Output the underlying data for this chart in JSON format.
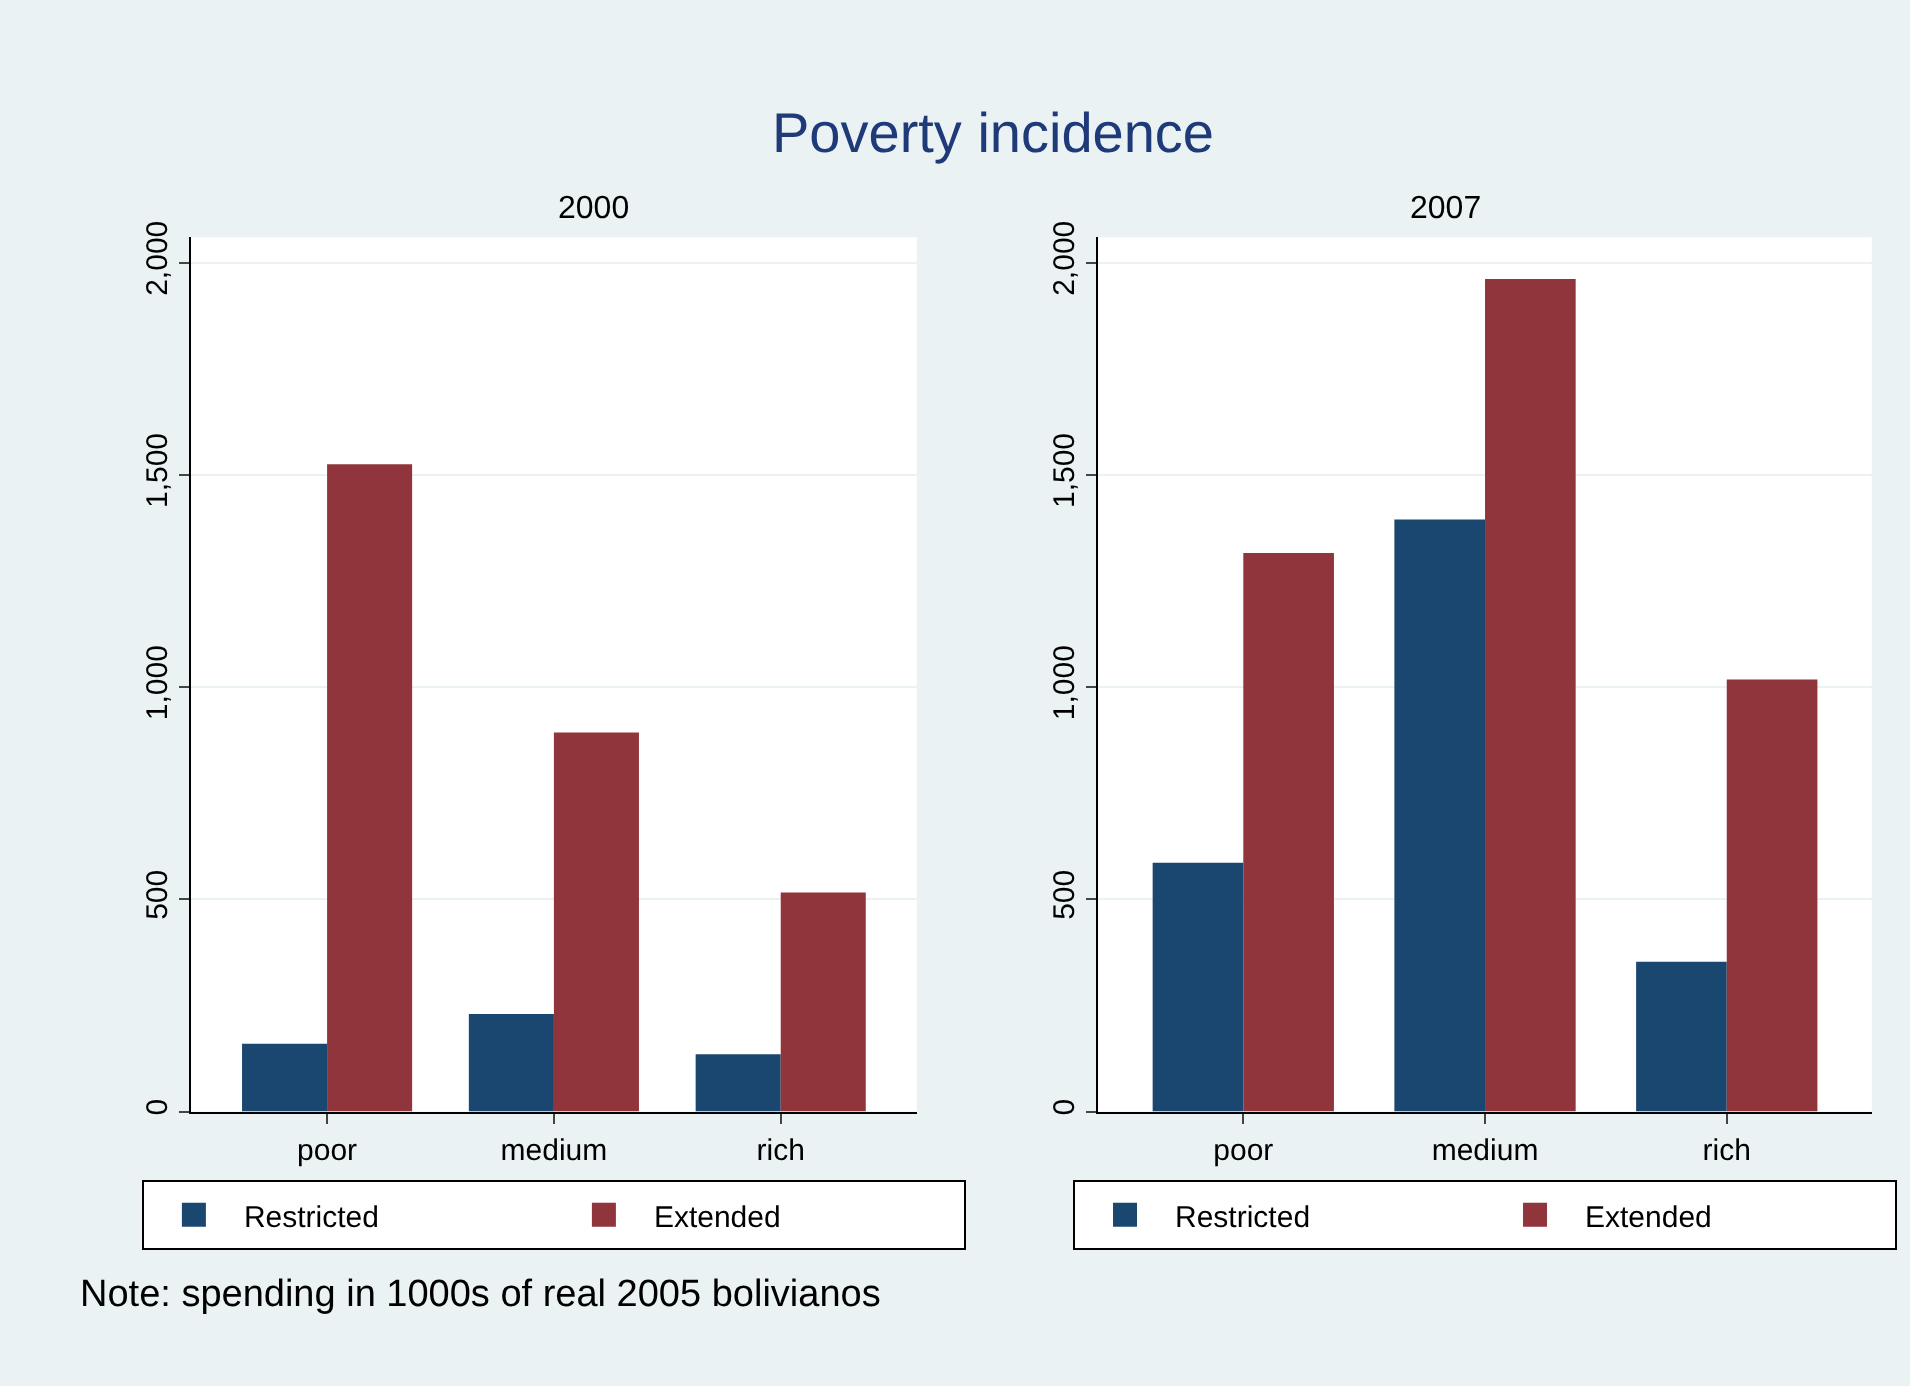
{
  "chart_data": [
    {
      "type": "bar",
      "title": "2000",
      "categories": [
        "poor",
        "medium",
        "rich"
      ],
      "series": [
        {
          "name": "Restricted",
          "color": "#1a476f",
          "values": [
            160,
            230,
            135
          ]
        },
        {
          "name": "Extended",
          "color": "#90353b",
          "values": [
            1525,
            893,
            516
          ]
        }
      ],
      "ylim": [
        0,
        2060
      ],
      "yticks": [
        0,
        500,
        {
          "value": 1000,
          "label": "1,000"
        },
        {
          "value": 1500,
          "label": "1,500"
        },
        {
          "value": 2000,
          "label": "2,000"
        }
      ],
      "grid": "y",
      "legend": "bottom",
      "annotations": [
        "Poverty incidence",
        "Note: spending in 1000s of real 2005 bolivianos"
      ]
    },
    {
      "type": "bar",
      "title": "2007",
      "categories": [
        "poor",
        "medium",
        "rich"
      ],
      "series": [
        {
          "name": "Restricted",
          "color": "#1a476f",
          "values": [
            586,
            1395,
            353
          ]
        },
        {
          "name": "Extended",
          "color": "#90353b",
          "values": [
            1316,
            1962,
            1018
          ]
        }
      ],
      "ylim": [
        0,
        2060
      ],
      "yticks": [
        0,
        500,
        {
          "value": 1000,
          "label": "1,000"
        },
        {
          "value": 1500,
          "label": "1,500"
        },
        {
          "value": 2000,
          "label": "2,000"
        }
      ],
      "grid": "y",
      "legend": "bottom"
    }
  ]
}
